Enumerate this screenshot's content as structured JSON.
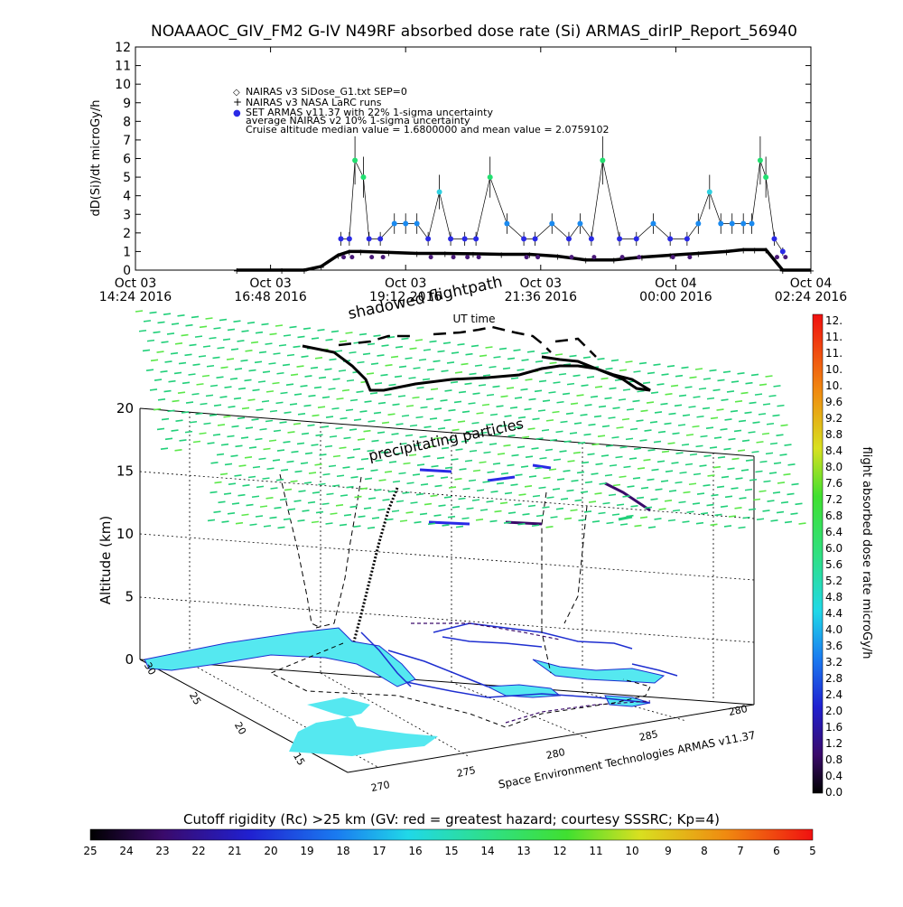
{
  "title": "NOAAAOC_GIV_FM2 G-IV   N49RF  absorbed dose rate (Si) ARMAS_dirIP_Report_56940",
  "colors": {
    "armas": "#2a2ae6",
    "armas_dark": "#4a1a7a",
    "nairas_v3": "#000000",
    "particles_low": "#22d07a",
    "particles_high": "#5ce84a",
    "land": "#55e8f0",
    "coast": "#1e2ed0",
    "rc_low": "#3a0a6a"
  },
  "chart_data": [
    {
      "type": "line",
      "ylabel": "dD(Si)/dt microGy/h",
      "xlabel": "UT time",
      "ylim": [
        0,
        12
      ],
      "y_ticks": [
        "0",
        "1",
        "2",
        "3",
        "4",
        "5",
        "6",
        "7",
        "8",
        "9",
        "10",
        "11",
        "12"
      ],
      "x_tick_labels": [
        {
          "line1": "Oct 03",
          "line2": "14:24 2016"
        },
        {
          "line1": "Oct 03",
          "line2": "16:48 2016"
        },
        {
          "line1": "Oct 03",
          "line2": "19:12 2016"
        },
        {
          "line1": "Oct 03",
          "line2": "21:36 2016"
        },
        {
          "line1": "Oct 04",
          "line2": "00:00 2016"
        },
        {
          "line1": "Oct 04",
          "line2": "02:24 2016"
        }
      ],
      "x_hours": [
        0,
        2.4,
        4.8,
        7.2,
        9.6,
        12.0
      ],
      "legend": [
        {
          "symbol": "◇",
          "text": "NAIRAS v3 SiDose_G1.txt SEP=0"
        },
        {
          "symbol": "+",
          "text": "NAIRAS v3 NASA LaRC runs"
        },
        {
          "symbol": "●",
          "text": "SET ARMAS v11.37 with 22% 1-sigma uncertainty"
        },
        {
          "symbol": "",
          "text": "average NAIRAS v2 10% 1-sigma uncertainty"
        },
        {
          "symbol": "",
          "text": "Cruise altitude median value = 1.6800000 and mean value = 2.0759102"
        }
      ],
      "series": [
        {
          "name": "NAIRAS v3 NASA LaRC runs",
          "x": [
            1.8,
            2.6,
            3.0,
            3.3,
            3.6,
            3.8,
            4.0,
            4.5,
            5.0,
            5.5,
            6.0,
            6.5,
            7.0,
            7.5,
            8.0,
            8.5,
            9.0,
            9.5,
            10.0,
            10.5,
            10.8,
            11.0,
            11.2,
            11.5,
            12.0
          ],
          "y": [
            0,
            0,
            0,
            0.2,
            0.8,
            1.0,
            1.0,
            0.95,
            0.9,
            0.9,
            0.88,
            0.85,
            0.85,
            0.75,
            0.55,
            0.55,
            0.7,
            0.8,
            0.9,
            1.0,
            1.1,
            1.1,
            1.1,
            0,
            0
          ]
        },
        {
          "name": "SET ARMAS v11.37 with 22% 1-sigma uncertainty",
          "x": [
            3.65,
            3.8,
            3.9,
            4.05,
            4.15,
            4.35,
            4.6,
            4.8,
            5.0,
            5.2,
            5.4,
            5.6,
            5.85,
            6.05,
            6.3,
            6.6,
            6.9,
            7.1,
            7.4,
            7.7,
            7.9,
            8.1,
            8.3,
            8.6,
            8.9,
            9.2,
            9.5,
            9.8,
            10.0,
            10.2,
            10.4,
            10.6,
            10.8,
            10.95,
            11.1,
            11.2,
            11.35,
            11.5
          ],
          "y": [
            1.68,
            1.68,
            5.9,
            5.0,
            1.68,
            1.68,
            2.5,
            2.5,
            2.5,
            1.68,
            4.2,
            1.68,
            1.68,
            1.68,
            5.0,
            2.5,
            1.68,
            1.68,
            2.5,
            1.68,
            2.5,
            1.68,
            5.9,
            1.68,
            1.68,
            2.5,
            1.68,
            1.68,
            2.5,
            4.2,
            2.5,
            2.5,
            2.5,
            2.5,
            5.9,
            5.0,
            1.68,
            1.0
          ]
        }
      ]
    },
    {
      "type": "scatter",
      "title": "shadowed flightpath",
      "annotation": "precipitating particles",
      "ylabel": "Altitude (km)",
      "z_ticks": [
        "0",
        "5",
        "10",
        "15",
        "20"
      ],
      "lat_ticks": [
        "30",
        "25",
        "20",
        "15"
      ],
      "lon_ticks": [
        "270",
        "275",
        "280",
        "285",
        "280"
      ],
      "credit": "Space Environment Technologies ARMAS v11.37"
    }
  ],
  "colorbar_right": {
    "label": "flight absorbed dose rate microGy/h",
    "ticks": [
      "12.",
      "11.",
      "11.",
      "10.",
      "10.",
      "9.6",
      "9.2",
      "8.8",
      "8.4",
      "8.0",
      "7.6",
      "7.2",
      "6.8",
      "6.4",
      "6.0",
      "5.6",
      "5.2",
      "4.8",
      "4.4",
      "4.0",
      "3.6",
      "3.2",
      "2.8",
      "2.4",
      "2.0",
      "1.6",
      "1.2",
      "0.8",
      "0.4",
      "0.0"
    ]
  },
  "colorbar_bottom": {
    "label": "Cutoff rigidity (Rc) >25 km (GV: red = greatest hazard; courtesy SSSRC; Kp=4)",
    "ticks": [
      "25",
      "24",
      "23",
      "22",
      "21",
      "20",
      "19",
      "18",
      "17",
      "16",
      "15",
      "14",
      "13",
      "12",
      "11",
      "10",
      "9",
      "8",
      "7",
      "6",
      "5"
    ]
  }
}
